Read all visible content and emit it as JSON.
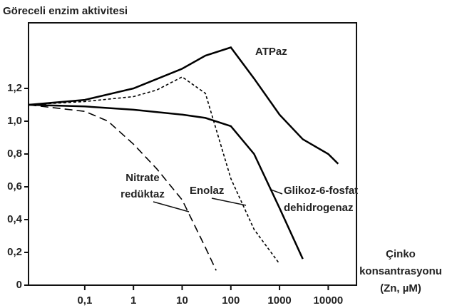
{
  "chart_data": {
    "type": "line",
    "title": "Göreceli enzim aktivitesi",
    "x_label": [
      "Çinko",
      "konsantrasyonu",
      "(Zn, µM)"
    ],
    "xscale": "log",
    "xlim": [
      0.007,
      38000
    ],
    "xticks": [
      {
        "value": 0.1,
        "label": "0,1"
      },
      1,
      10,
      100,
      1000,
      10000
    ],
    "ylim": [
      0,
      1.6
    ],
    "yticks": [
      0,
      {
        "value": 0.2,
        "label": "0,2"
      },
      {
        "value": 0.4,
        "label": "0,4"
      },
      {
        "value": 0.6,
        "label": "0,6"
      },
      {
        "value": 0.8,
        "label": "0,8"
      },
      {
        "value": 1.0,
        "label": "1,0"
      },
      {
        "value": 1.2,
        "label": "1,2"
      }
    ],
    "series": [
      {
        "name": "ATPaz",
        "label": [
          "ATPaz"
        ],
        "color": "#000000",
        "dash": "solid",
        "x": [
          0.007,
          0.1,
          1,
          10,
          30,
          100,
          300,
          1000,
          3000,
          10000,
          16000
        ],
        "values": [
          1.1,
          1.13,
          1.2,
          1.32,
          1.4,
          1.45,
          1.26,
          1.04,
          0.89,
          0.8,
          0.74
        ]
      },
      {
        "name": "Glikoz-6-fosfat dehidrogenaz",
        "label": [
          "Glikoz-6-fosfat",
          "dehidrogenaz"
        ],
        "color": "#000000",
        "dash": "solid",
        "x": [
          0.007,
          0.1,
          1,
          10,
          30,
          100,
          300,
          1000,
          3000
        ],
        "values": [
          1.1,
          1.09,
          1.07,
          1.04,
          1.02,
          0.97,
          0.8,
          0.47,
          0.16
        ]
      },
      {
        "name": "Enolaz",
        "label": [
          "Enolaz"
        ],
        "color": "#000000",
        "dash": "dotted",
        "x": [
          0.007,
          0.1,
          1,
          3,
          10,
          30,
          100,
          300,
          1000
        ],
        "values": [
          1.1,
          1.12,
          1.15,
          1.19,
          1.27,
          1.17,
          0.65,
          0.34,
          0.13
        ]
      },
      {
        "name": "Nitrate redüktaz",
        "label": [
          "Nitrate",
          "redüktaz"
        ],
        "color": "#000000",
        "dash": "dashed",
        "x": [
          0.007,
          0.1,
          0.3,
          1,
          3,
          10,
          30,
          50
        ],
        "values": [
          1.1,
          1.06,
          1.0,
          0.86,
          0.71,
          0.52,
          0.23,
          0.09
        ]
      }
    ]
  }
}
